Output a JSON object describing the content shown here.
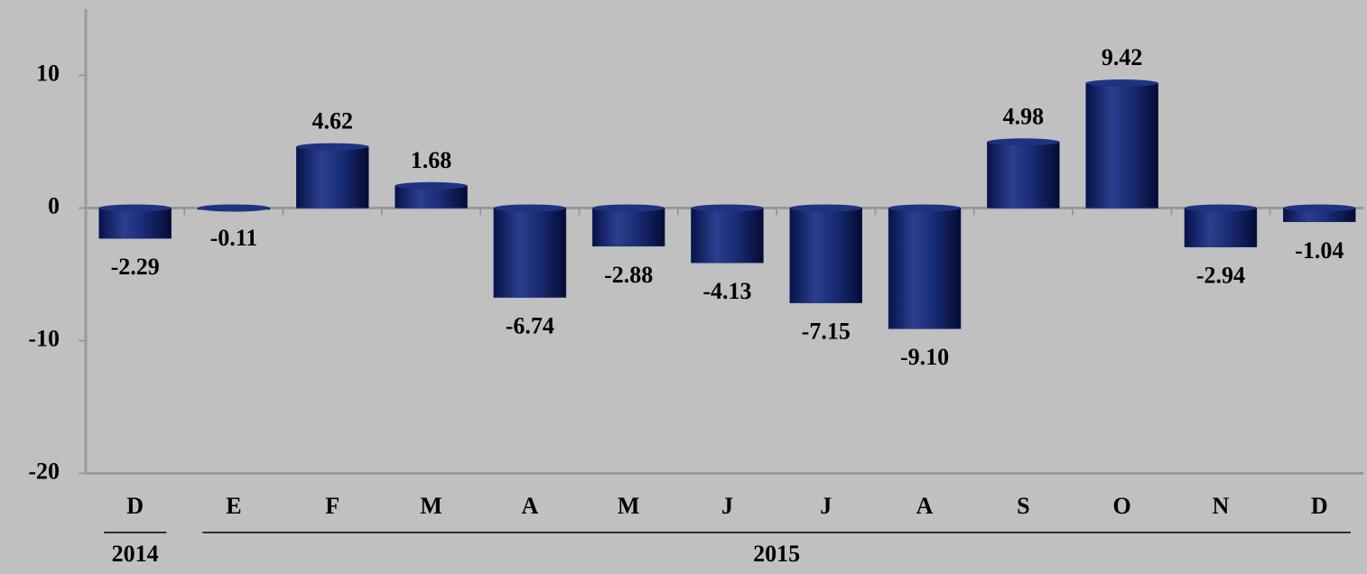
{
  "chart_data": {
    "type": "bar",
    "categories": [
      "D",
      "E",
      "F",
      "M",
      "A",
      "M",
      "J",
      "J",
      "A",
      "S",
      "O",
      "N",
      "D"
    ],
    "values": [
      -2.29,
      -0.11,
      4.62,
      1.68,
      -6.74,
      -2.88,
      -4.13,
      -7.15,
      -9.1,
      4.98,
      9.42,
      -2.94,
      -1.04
    ],
    "value_labels": [
      "-2.29",
      "-0.11",
      "4.62",
      "1.68",
      "-6.74",
      "-2.88",
      "-4.13",
      "-7.15",
      "-9.10",
      "4.98",
      "9.42",
      "-2.94",
      "-1.04"
    ],
    "x_group_labels": [
      "2014",
      "2015"
    ],
    "color": "#14286e",
    "ylim": [
      -20,
      15
    ],
    "yticks": [
      -20,
      -10,
      0,
      10
    ]
  }
}
